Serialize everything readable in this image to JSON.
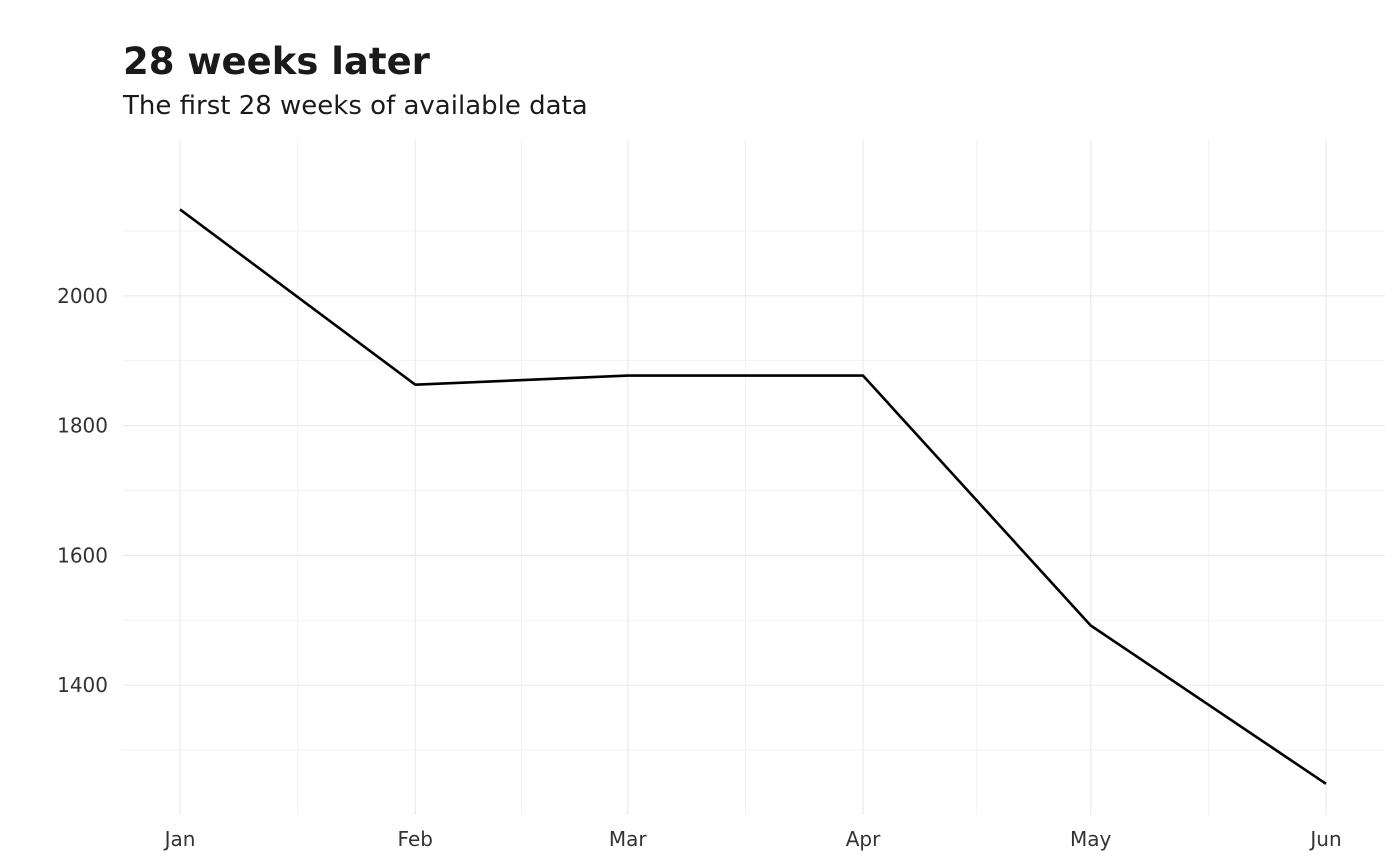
{
  "chart_data": {
    "type": "line",
    "title": "28 weeks later",
    "subtitle": "The first 28 weeks of available data",
    "xlabel": "",
    "ylabel": "",
    "x_ticks": [
      "Jan",
      "Feb",
      "Mar",
      "Apr",
      "May",
      "Jun"
    ],
    "y_ticks": [
      1400,
      1600,
      1800,
      2000
    ],
    "ylim": [
      1200,
      2240
    ],
    "grid": true,
    "series": [
      {
        "color": "#000000",
        "points": [
          {
            "x": "Jan",
            "y": 2133
          },
          {
            "x": "Feb",
            "y": 1863
          },
          {
            "x": "Mar",
            "y": 1877
          },
          {
            "x": "Apr",
            "y": 1877
          },
          {
            "x": "May",
            "y": 1492
          },
          {
            "x": "Jun",
            "y": 1248
          }
        ]
      }
    ]
  }
}
